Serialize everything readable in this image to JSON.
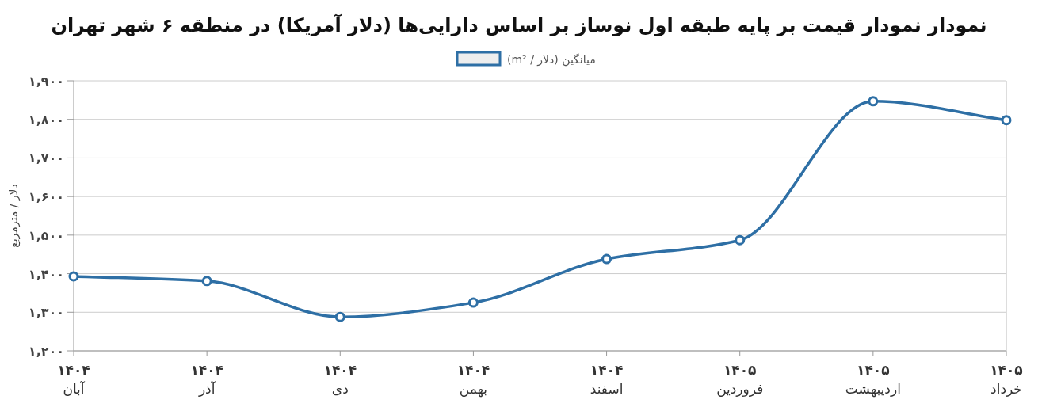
{
  "chart_data": {
    "type": "line",
    "title": "نمودار نمودار قیمت بر پایه طبقه اول نوساز بر اساس دارایی‌ها (دلار آمریکا) در منطقه ۶ شهر تهران",
    "ylabel": "دلار / مترمربع",
    "categories": [
      "۱۴۰۴\nآبان",
      "۱۴۰۴\nآذر",
      "۱۴۰۴\nدی",
      "۱۴۰۴\nبهمن",
      "۱۴۰۴\nاسفند",
      "۱۴۰۵\nفروردین",
      "۱۴۰۵\nاردیبهشت",
      "۱۴۰۵\nخرداد"
    ],
    "series": [
      {
        "name": "میانگین (دلار / m²)",
        "color": "#2e6fa5",
        "values": [
          1393,
          1381,
          1288,
          1325,
          1438,
          1487,
          1847,
          1798
        ]
      }
    ],
    "ylim": [
      1200,
      1900
    ],
    "yticks": [
      {
        "value": 1200,
        "label": "۱,۲۰۰"
      },
      {
        "value": 1300,
        "label": "۱,۳۰۰"
      },
      {
        "value": 1400,
        "label": "۱,۴۰۰"
      },
      {
        "value": 1500,
        "label": "۱,۵۰۰"
      },
      {
        "value": 1600,
        "label": "۱,۶۰۰"
      },
      {
        "value": 1700,
        "label": "۱,۷۰۰"
      },
      {
        "value": 1800,
        "label": "۱,۸۰۰"
      },
      {
        "value": 1900,
        "label": "۱,۹۰۰"
      }
    ],
    "grid": "y",
    "legend": "top",
    "marker": "circle",
    "line_style": "solid"
  }
}
